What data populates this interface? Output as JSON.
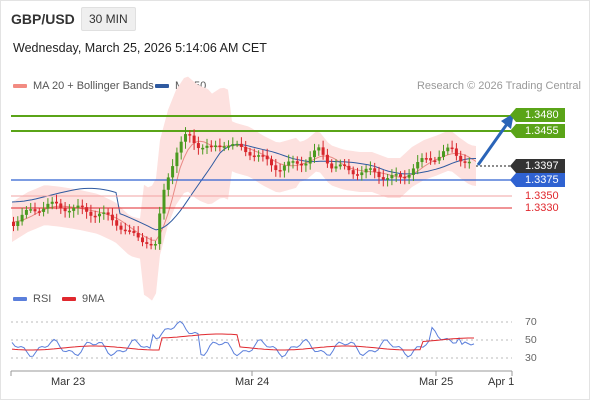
{
  "header": {
    "pair": "GBP/USD",
    "timeframe": "30 MIN",
    "timestamp": "Wednesday, March 25, 2026 5:14:06 AM CET"
  },
  "legend": {
    "bands_label": "MA 20 + Bollinger Bands",
    "ma50_label": "MA 50",
    "bands_color": "#f28b82",
    "ma50_color": "#2f5aa0"
  },
  "credit": "Research © 2026 Trading Central",
  "levels": {
    "r2": {
      "value": "1.3480",
      "color": "#5aa418"
    },
    "r1": {
      "value": "1.3455",
      "color": "#5aa418"
    },
    "last": {
      "value": "1.3397",
      "color": "#333333"
    },
    "pivot": {
      "value": "1.3375",
      "color": "#2f62d1"
    },
    "s1": {
      "value": "1.3350",
      "color": "#e0282e"
    },
    "s2": {
      "value": "1.3330",
      "color": "#e0282e"
    }
  },
  "rsi": {
    "rsi_label": "RSI",
    "ma_label": "9MA",
    "rsi_color": "#5b7fdb",
    "ma_color": "#e0282e",
    "levels": [
      "70",
      "50",
      "30"
    ]
  },
  "xaxis": [
    "Mar 23",
    "Mar 24",
    "Mar 25",
    "Apr 1"
  ],
  "chart_data": {
    "type": "candlestick",
    "price_levels": [
      1.348,
      1.3455,
      1.3397,
      1.3375,
      1.335,
      1.333
    ],
    "rsi_levels": [
      70,
      50,
      30
    ],
    "x_labels": [
      "Mar 23",
      "Mar 24",
      "Mar 25",
      "Apr 1"
    ]
  }
}
